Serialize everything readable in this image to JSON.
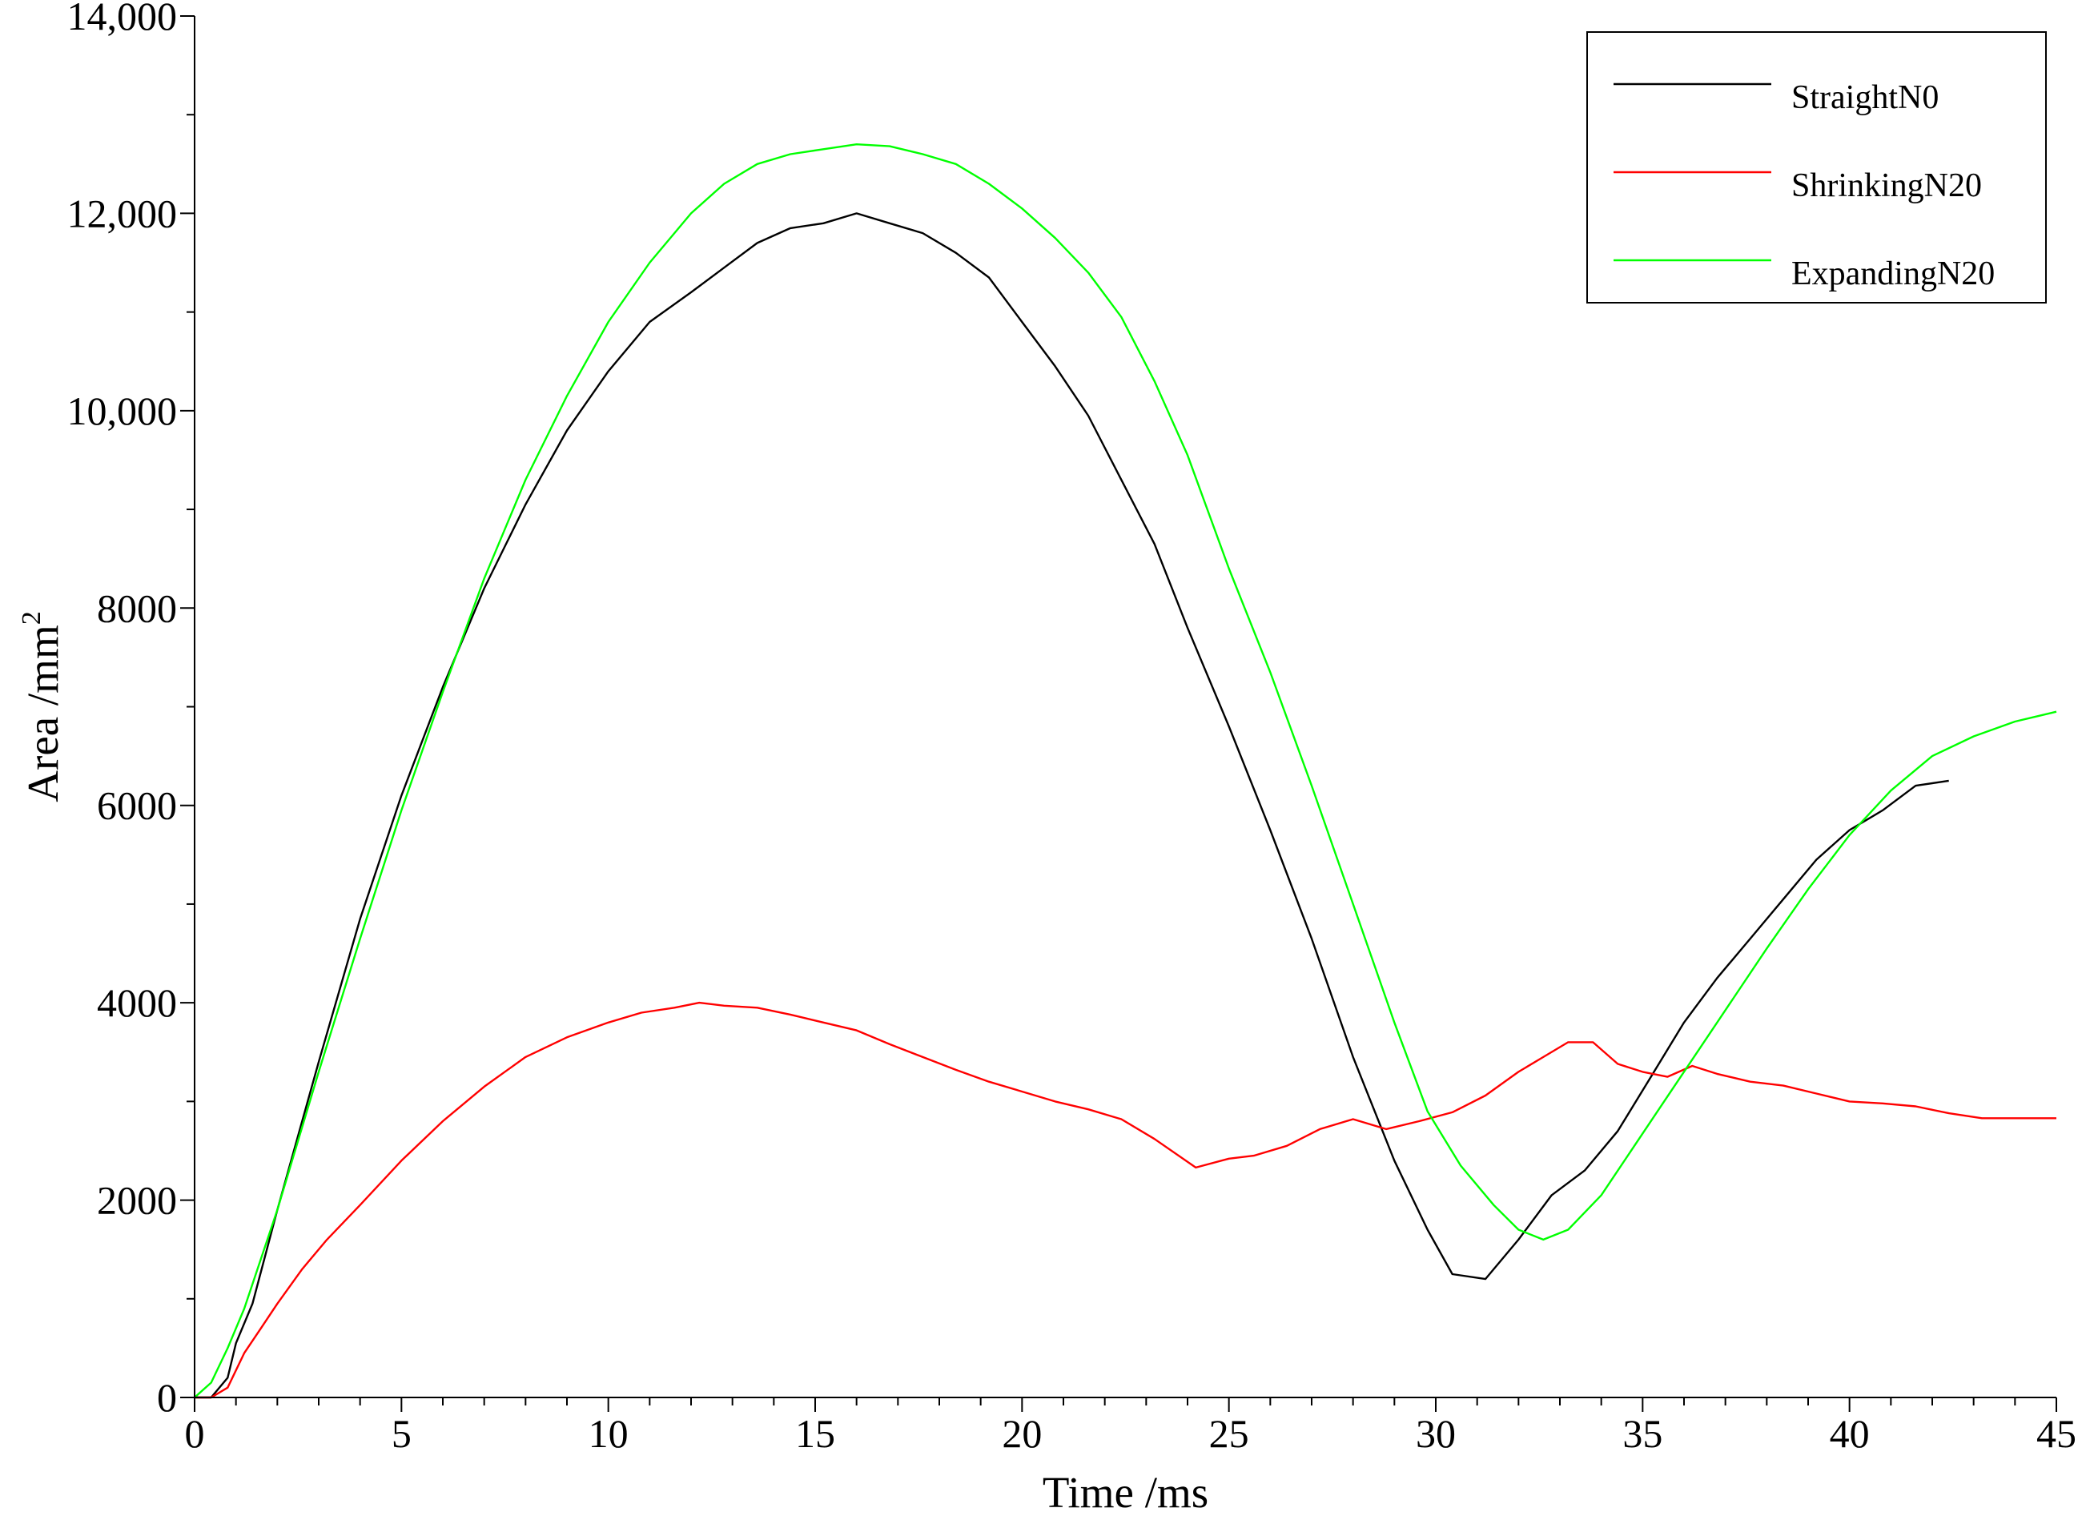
{
  "chart_data": {
    "type": "line",
    "xlabel": "Time /ms",
    "ylabel_main": "Area /mm",
    "ylabel_sup": "2",
    "xlim": [
      0,
      45
    ],
    "ylim": [
      0,
      14000
    ],
    "x_ticks": [
      0,
      5,
      10,
      15,
      20,
      25,
      30,
      35,
      40,
      45
    ],
    "x_tick_labels": [
      "0",
      "5",
      "10",
      "15",
      "20",
      "25",
      "30",
      "35",
      "40",
      "45"
    ],
    "y_ticks": [
      0,
      2000,
      4000,
      6000,
      8000,
      10000,
      12000,
      14000
    ],
    "y_tick_labels": [
      "0",
      "2000",
      "4000",
      "6000",
      "8000",
      "10,000",
      "12,000",
      "14,000"
    ],
    "y_minor_step": 1000,
    "x_minor_step": 1,
    "grid": false,
    "legend_position": "top-right",
    "series": [
      {
        "name": "StraightN0",
        "color": "#000000",
        "x": [
          0,
          0.4,
          0.8,
          1.0,
          1.4,
          2.0,
          3.0,
          4.0,
          5.0,
          6.0,
          7.0,
          8.0,
          9.0,
          10.0,
          11.0,
          12.0,
          12.8,
          13.6,
          14.4,
          15.2,
          16.0,
          16.8,
          17.6,
          18.4,
          19.2,
          20.0,
          20.8,
          21.6,
          22.4,
          23.2,
          24.0,
          25.0,
          26.0,
          27.0,
          28.0,
          29.0,
          29.8,
          30.4,
          31.2,
          32.0,
          32.8,
          33.6,
          34.4,
          35.2,
          36.0,
          36.8,
          37.6,
          38.4,
          39.2,
          40.0,
          40.8,
          41.6,
          42.4
        ],
        "y": [
          0,
          0,
          200,
          550,
          950,
          1900,
          3400,
          4850,
          6100,
          7200,
          8200,
          9050,
          9800,
          10400,
          10900,
          11200,
          11450,
          11700,
          11850,
          11900,
          12000,
          11900,
          11800,
          11600,
          11350,
          10900,
          10450,
          9950,
          9300,
          8650,
          7800,
          6800,
          5750,
          4650,
          3450,
          2400,
          1700,
          1250,
          1200,
          1600,
          2050,
          2300,
          2700,
          3250,
          3800,
          4250,
          4650,
          5050,
          5450,
          5750,
          5950,
          6200,
          6250
        ]
      },
      {
        "name": "ShrinkingN20",
        "color": "#ff0000",
        "x": [
          0,
          0.4,
          0.8,
          1.2,
          1.6,
          2.0,
          2.6,
          3.2,
          4.0,
          5.0,
          6.0,
          7.0,
          8.0,
          9.0,
          10.0,
          10.8,
          11.6,
          12.2,
          12.8,
          13.6,
          14.4,
          15.2,
          16.0,
          16.8,
          17.6,
          18.4,
          19.2,
          20.0,
          20.8,
          21.6,
          22.4,
          23.2,
          24.2,
          25.0,
          25.6,
          26.4,
          27.2,
          28.0,
          28.8,
          29.6,
          30.4,
          31.2,
          32.0,
          32.6,
          33.2,
          33.8,
          34.4,
          35.0,
          35.6,
          36.2,
          36.8,
          37.6,
          38.4,
          39.2,
          40.0,
          40.8,
          41.6,
          42.4,
          43.2,
          44.0,
          45.0
        ],
        "y": [
          0,
          0,
          100,
          450,
          700,
          950,
          1300,
          1600,
          1950,
          2400,
          2800,
          3150,
          3450,
          3650,
          3800,
          3900,
          3950,
          4000,
          3970,
          3950,
          3880,
          3800,
          3720,
          3580,
          3450,
          3320,
          3200,
          3100,
          3000,
          2920,
          2820,
          2620,
          2330,
          2420,
          2450,
          2550,
          2720,
          2820,
          2720,
          2800,
          2890,
          3060,
          3300,
          3450,
          3600,
          3600,
          3380,
          3300,
          3250,
          3360,
          3280,
          3200,
          3160,
          3080,
          3000,
          2980,
          2950,
          2880,
          2830,
          2830,
          2830
        ]
      },
      {
        "name": "ExpandingN20",
        "color": "#00ff00",
        "x": [
          0,
          0.4,
          0.8,
          1.2,
          2.0,
          3.0,
          4.0,
          5.0,
          6.0,
          7.0,
          8.0,
          9.0,
          10.0,
          11.0,
          12.0,
          12.8,
          13.6,
          14.4,
          15.2,
          16.0,
          16.8,
          17.6,
          18.4,
          19.2,
          20.0,
          20.8,
          21.6,
          22.4,
          23.2,
          24.0,
          25.0,
          26.0,
          27.0,
          28.0,
          29.0,
          29.8,
          30.6,
          31.4,
          32.0,
          32.6,
          33.2,
          34.0,
          34.8,
          35.6,
          36.4,
          37.2,
          38.0,
          39.0,
          40.0,
          41.0,
          42.0,
          43.0,
          44.0,
          45.0
        ],
        "y": [
          0,
          150,
          500,
          900,
          1900,
          3300,
          4650,
          5950,
          7150,
          8300,
          9300,
          10150,
          10900,
          11500,
          12000,
          12300,
          12500,
          12600,
          12650,
          12700,
          12680,
          12600,
          12500,
          12300,
          12050,
          11750,
          11400,
          10950,
          10300,
          9550,
          8400,
          7350,
          6200,
          5000,
          3800,
          2900,
          2350,
          1950,
          1700,
          1600,
          1700,
          2050,
          2550,
          3050,
          3550,
          4050,
          4550,
          5150,
          5700,
          6150,
          6500,
          6700,
          6850,
          6950
        ]
      }
    ]
  }
}
